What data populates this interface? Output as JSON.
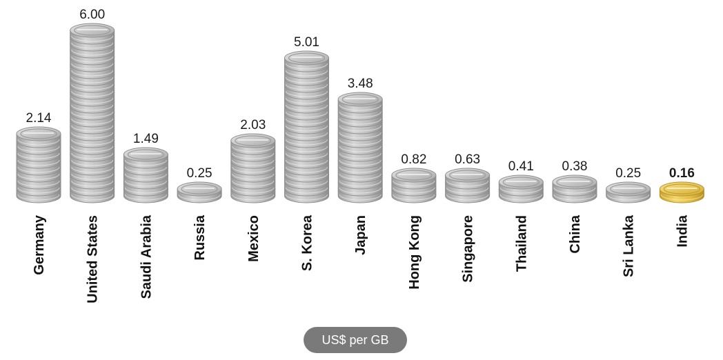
{
  "chart_data": {
    "type": "bar",
    "categories": [
      "Germany",
      "United States",
      "Saudi Arabia",
      "Russia",
      "Mexico",
      "S. Korea",
      "Japan",
      "Hong Kong",
      "Singapore",
      "Thailand",
      "China",
      "Sri Lanka",
      "India"
    ],
    "values": [
      2.14,
      6.0,
      1.49,
      0.25,
      2.03,
      5.01,
      3.48,
      0.82,
      0.63,
      0.41,
      0.38,
      0.25,
      0.16
    ],
    "value_labels": [
      "2.14",
      "6.00",
      "1.49",
      "0.25",
      "2.03",
      "5.01",
      "3.48",
      "0.82",
      "0.63",
      "0.41",
      "0.38",
      "0.25",
      "0.16"
    ],
    "unit_label": "US$ per GB",
    "highlight_category": "India",
    "colors": {
      "coin_default": "#c8c8c8",
      "coin_edge": "#8e8e8e",
      "coin_highlight": "#e6c44a",
      "coin_highlight_edge": "#b8922a",
      "highlight_text": "#7a1a1a",
      "label_text": "#111111",
      "unit_pill": "#7a7a7a"
    },
    "title": "",
    "xlabel": "",
    "ylabel": "",
    "ylim": [
      0,
      6
    ],
    "grid": false,
    "legend": "none"
  }
}
